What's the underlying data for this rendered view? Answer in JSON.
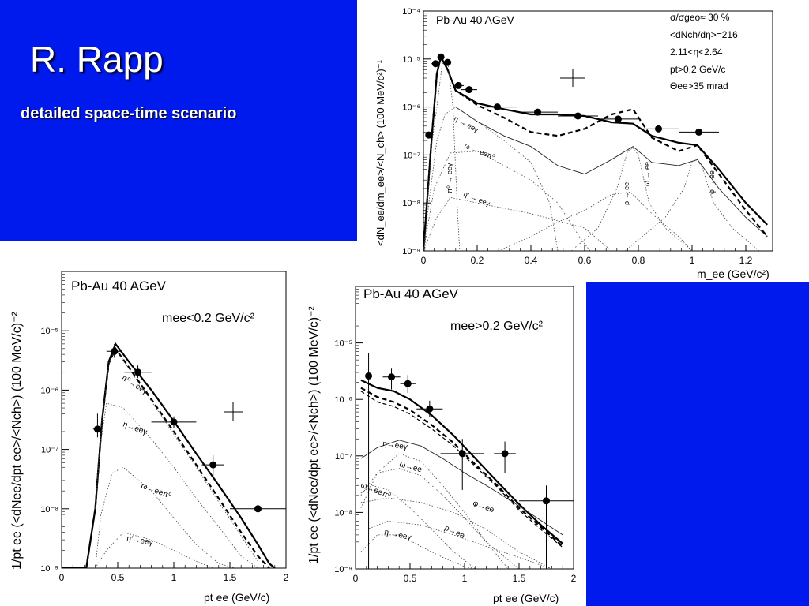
{
  "slide": {
    "title": "R. Rapp",
    "subtitle": "detailed space-time scenario",
    "background_color": "#0019ec"
  },
  "chart_data": [
    {
      "type": "line",
      "id": "mass",
      "title": "Pb-Au 40 AGeV",
      "xlabel": "m_ee (GeV/c²)",
      "ylabel": "<dN_ee/dm_ee>/<N_ch> (100 MeV/c²)⁻¹",
      "xlim": [
        0,
        1.3
      ],
      "ylim_log": [
        1e-09,
        0.0001
      ],
      "y_scale": "log",
      "x_ticks": [
        "0",
        "0.2",
        "0.4",
        "0.6",
        "0.8",
        "1",
        "1.2"
      ],
      "y_ticks": [
        "10⁻⁹",
        "10⁻⁸",
        "10⁻⁷",
        "10⁻⁶",
        "10⁻⁵",
        "10⁻⁴"
      ],
      "cuts": [
        "σ/σgeo≈ 30 %",
        "<dNch/dη>=216",
        "2.11<η<2.64",
        "pt>0.2 GeV/c",
        "Θee>35 mrad"
      ],
      "channel_labels": [
        "η → eeγ",
        "ω → eeπ⁰",
        "π⁰ → eeγ",
        "η′ → eeγ",
        "ρ → ee",
        "ω → ee",
        "φ → ee"
      ],
      "data_points": [
        {
          "x": 0.02,
          "y": 2.6e-07,
          "xerr": 0.01
        },
        {
          "x": 0.045,
          "y": 8e-06,
          "xerr": 0.015
        },
        {
          "x": 0.065,
          "y": 1.1e-05,
          "xerr": 0.01
        },
        {
          "x": 0.09,
          "y": 8.5e-06,
          "xerr": 0.01
        },
        {
          "x": 0.13,
          "y": 2.8e-06,
          "xerr": 0.02
        },
        {
          "x": 0.17,
          "y": 2.3e-06,
          "xerr": 0.03
        },
        {
          "x": 0.275,
          "y": 1e-06,
          "xerr": 0.075
        },
        {
          "x": 0.425,
          "y": 7.8e-07,
          "xerr": 0.075
        },
        {
          "x": 0.575,
          "y": 6.5e-07,
          "xerr": 0.075
        },
        {
          "x": 0.725,
          "y": 5.6e-07,
          "xerr": 0.075
        },
        {
          "x": 0.875,
          "y": 3.5e-07,
          "xerr": 0.075
        },
        {
          "x": 1.025,
          "y": 3e-07,
          "xerr": 0.075
        }
      ],
      "series": [
        {
          "style": "solid-thick",
          "x": [
            0,
            0.03,
            0.05,
            0.065,
            0.09,
            0.12,
            0.2,
            0.3,
            0.4,
            0.5,
            0.6,
            0.7,
            0.78,
            0.85,
            0.95,
            1.02,
            1.1,
            1.2,
            1.28
          ],
          "y": [
            1e-09,
            2e-07,
            5e-06,
            1.1e-05,
            6e-06,
            2.2e-06,
            1.2e-06,
            9e-07,
            7e-07,
            7e-07,
            6.5e-07,
            4.8e-07,
            4.5e-07,
            2.5e-07,
            1.8e-07,
            1.6e-07,
            5e-08,
            1e-08,
            3.5e-09
          ]
        },
        {
          "style": "dashed-thick",
          "x": [
            0,
            0.03,
            0.05,
            0.065,
            0.09,
            0.12,
            0.2,
            0.3,
            0.4,
            0.5,
            0.6,
            0.7,
            0.78,
            0.85,
            0.95,
            1.02,
            1.1,
            1.2,
            1.28
          ],
          "y": [
            1e-09,
            2e-07,
            5e-06,
            1.1e-05,
            6e-06,
            2.2e-06,
            1.1e-06,
            6e-07,
            3e-07,
            2.5e-07,
            3.5e-07,
            7e-07,
            9e-07,
            2.3e-07,
            1.2e-07,
            1.6e-07,
            4e-08,
            7e-09,
            2e-09
          ]
        },
        {
          "style": "solid-thin",
          "x": [
            0.12,
            0.2,
            0.3,
            0.4,
            0.5,
            0.6,
            0.7,
            0.78,
            0.85,
            0.95,
            1.02,
            1.1,
            1.2,
            1.28
          ],
          "y": [
            1e-06,
            5e-07,
            2.5e-07,
            1.5e-07,
            6e-08,
            4e-08,
            8e-08,
            1.5e-07,
            7e-08,
            6e-08,
            8e-08,
            2e-08,
            5e-09,
            2e-09
          ]
        },
        {
          "name": "η → eeγ",
          "style": "dotted",
          "x": [
            0,
            0.02,
            0.05,
            0.08,
            0.12,
            0.2,
            0.3,
            0.4,
            0.47,
            0.5
          ],
          "y": [
            1e-09,
            1e-08,
            2e-07,
            7e-07,
            1e-06,
            5e-07,
            2e-07,
            7e-08,
            1e-08,
            1e-09
          ]
        },
        {
          "name": "ω → eeπ⁰",
          "style": "dotted",
          "x": [
            0,
            0.04,
            0.1,
            0.2,
            0.3,
            0.4,
            0.5,
            0.58,
            0.62
          ],
          "y": [
            1e-09,
            2e-08,
            1.1e-07,
            1.2e-07,
            6e-08,
            3e-08,
            1e-08,
            2e-09,
            1e-09
          ]
        },
        {
          "name": "π⁰ → eeγ",
          "style": "dotted",
          "x": [
            0.005,
            0.015,
            0.03,
            0.05,
            0.07,
            0.09,
            0.11,
            0.125,
            0.135
          ],
          "y": [
            1e-09,
            1e-08,
            1.5e-07,
            1e-06,
            8e-06,
            9e-06,
            1e-06,
            1e-08,
            1e-09
          ]
        },
        {
          "name": "η′ → eeγ",
          "style": "dotted",
          "x": [
            0,
            0.05,
            0.1,
            0.2,
            0.4,
            0.6,
            0.7
          ],
          "y": [
            1e-09,
            5e-09,
            1.3e-08,
            1e-08,
            6e-09,
            3e-09,
            1e-09
          ]
        },
        {
          "name": "ρ → ee",
          "style": "dotted",
          "x": [
            0.28,
            0.4,
            0.5,
            0.6,
            0.7,
            0.77,
            0.85,
            0.95,
            1.0
          ],
          "y": [
            1e-09,
            2e-09,
            4e-09,
            7e-09,
            1.5e-08,
            1.7e-08,
            6e-09,
            2e-09,
            1e-09
          ]
        },
        {
          "name": "ω → ee",
          "style": "dotted",
          "x": [
            0.55,
            0.65,
            0.72,
            0.76,
            0.78,
            0.8,
            0.84,
            0.9,
            1.0
          ],
          "y": [
            1e-09,
            3e-09,
            2e-08,
            1.2e-07,
            1.4e-07,
            1e-07,
            1e-08,
            3e-09,
            1e-09
          ]
        },
        {
          "name": "φ → ee",
          "style": "dotted",
          "x": [
            0.75,
            0.9,
            0.97,
            1.0,
            1.02,
            1.04,
            1.08,
            1.15,
            1.25
          ],
          "y": [
            1e-09,
            5e-09,
            2e-08,
            7e-08,
            8e-08,
            5e-08,
            1e-08,
            3e-09,
            1e-09
          ]
        }
      ]
    },
    {
      "type": "line",
      "id": "pt_low",
      "title": "Pb-Au 40 AGeV",
      "cut": "mee<0.2 GeV/c²",
      "xlabel": "pt ee (GeV/c)",
      "ylabel": "1/pt ee (<dNee/dpt ee>/<Nch>) (100 MeV/c)⁻²",
      "xlim": [
        0,
        2
      ],
      "ylim_log": [
        1e-09,
        0.0001
      ],
      "y_scale": "log",
      "x_ticks": [
        "0",
        "0.5",
        "1",
        "1.5",
        "2"
      ],
      "y_ticks": [
        "10⁻⁹",
        "10⁻⁸",
        "10⁻⁷",
        "10⁻⁶",
        "10⁻⁵"
      ],
      "channel_labels": [
        "π⁰→eeγ",
        "η→eeγ",
        "ω→eeπ⁰",
        "η′→eeγ"
      ],
      "data_points": [
        {
          "x": 0.32,
          "y": 2.2e-07,
          "xerr": 0.04,
          "yerr_lo": 1.6e-07,
          "yerr_hi": 4e-07
        },
        {
          "x": 0.47,
          "y": 4.5e-06,
          "xerr": 0.07,
          "yerr_lo": 3.5e-06,
          "yerr_hi": 6e-06
        },
        {
          "x": 0.68,
          "y": 2e-06,
          "xerr": 0.12,
          "yerr_lo": 1.6e-06,
          "yerr_hi": 2.6e-06
        },
        {
          "x": 1.0,
          "y": 2.9e-07,
          "xerr": 0.2,
          "yerr_lo": 2.3e-07,
          "yerr_hi": 3.6e-07
        },
        {
          "x": 1.35,
          "y": 5.5e-08,
          "xerr": 0.1,
          "yerr_lo": 3.5e-08,
          "yerr_hi": 8e-08
        },
        {
          "x": 1.75,
          "y": 1e-08,
          "xerr": 0.25,
          "yerr_lo": 2e-09,
          "yerr_hi": 1.7e-08
        }
      ],
      "series": [
        {
          "style": "solid-thick",
          "x": [
            0,
            0.22,
            0.3,
            0.36,
            0.42,
            0.48,
            0.6,
            0.8,
            1.0,
            1.2,
            1.4,
            1.6,
            1.75,
            1.85,
            1.9
          ],
          "y": [
            1e-09,
            1e-09,
            1e-08,
            3e-07,
            3e-06,
            6e-06,
            3e-06,
            1e-06,
            3e-07,
            8.5e-08,
            2.5e-08,
            7e-09,
            2.5e-09,
            1.2e-09,
            1e-09
          ]
        },
        {
          "style": "dashed-thick",
          "x": [
            0,
            0.22,
            0.3,
            0.36,
            0.42,
            0.48,
            0.6,
            0.8,
            1.0,
            1.2,
            1.4,
            1.6,
            1.75,
            1.85
          ],
          "y": [
            1e-09,
            1e-09,
            1e-08,
            3e-07,
            2.8e-06,
            5e-06,
            2.4e-06,
            7e-07,
            2e-07,
            5.5e-08,
            1.5e-08,
            4e-09,
            1.6e-09,
            1e-09
          ]
        },
        {
          "name": "π⁰→eeγ",
          "style": "dotted",
          "x": [
            0.3,
            0.36,
            0.42,
            0.48,
            0.6,
            0.8,
            1.0,
            1.2,
            1.4,
            1.6,
            1.75
          ],
          "y": [
            1e-08,
            3e-07,
            2.8e-06,
            5e-06,
            2.3e-06,
            6.5e-07,
            1.8e-07,
            5e-08,
            1.3e-08,
            3.5e-09,
            1.3e-09
          ]
        },
        {
          "name": "η→eeγ",
          "style": "dotted",
          "x": [
            0.3,
            0.34,
            0.4,
            0.55,
            0.8,
            1.0,
            1.2,
            1.4,
            1.6,
            1.75
          ],
          "y": [
            1e-08,
            1e-07,
            6e-07,
            5e-07,
            1.5e-07,
            5e-08,
            1.5e-08,
            5e-09,
            1.6e-09,
            1e-09
          ]
        },
        {
          "name": "ω→eeπ⁰",
          "style": "dotted",
          "x": [
            0.3,
            0.35,
            0.45,
            0.55,
            0.8,
            1.0,
            1.2,
            1.4,
            1.55
          ],
          "y": [
            1e-09,
            8e-09,
            4e-08,
            5e-08,
            2e-08,
            7e-09,
            2.5e-09,
            1.2e-09,
            1e-09
          ]
        },
        {
          "name": "η′→eeγ",
          "style": "dotted",
          "x": [
            0.3,
            0.4,
            0.55,
            0.8,
            1.0,
            1.2,
            1.35
          ],
          "y": [
            1e-09,
            2e-09,
            4e-09,
            3e-09,
            2e-09,
            1.3e-09,
            1e-09
          ]
        }
      ]
    },
    {
      "type": "line",
      "id": "pt_high",
      "title": "Pb-Au 40 AGeV",
      "cut": "mee>0.2 GeV/c²",
      "xlabel": "pt ee (GeV/c)",
      "ylabel": "1/pt ee (<dNee/dpt ee>/<Nch>) (100 MeV/c)⁻²",
      "xlim": [
        0,
        2
      ],
      "ylim_log": [
        1e-09,
        0.0001
      ],
      "y_scale": "log",
      "x_ticks": [
        "0",
        "0.5",
        "1",
        "1.5",
        "2"
      ],
      "y_ticks": [
        "10⁻⁹",
        "10⁻⁸",
        "10⁻⁷",
        "10⁻⁶",
        "10⁻⁵"
      ],
      "channel_labels": [
        "η→eeγ",
        "ω→ee",
        "ω→eeπ⁰",
        "φ→ee",
        "η →eeγ",
        "ρ→ee"
      ],
      "data_points": [
        {
          "x": 0.12,
          "y": 2.6e-06,
          "xerr": 0.07,
          "yerr_lo": 1e-09,
          "yerr_hi": 6.5e-06
        },
        {
          "x": 0.33,
          "y": 2.5e-06,
          "xerr": 0.08,
          "yerr_lo": 1.5e-06,
          "yerr_hi": 3.5e-06
        },
        {
          "x": 0.48,
          "y": 1.9e-06,
          "xerr": 0.07,
          "yerr_lo": 1.3e-06,
          "yerr_hi": 2.7e-06
        },
        {
          "x": 0.68,
          "y": 6.8e-07,
          "xerr": 0.12,
          "yerr_lo": 4.8e-07,
          "yerr_hi": 9.5e-07
        },
        {
          "x": 0.98,
          "y": 1.1e-07,
          "xerr": 0.2,
          "yerr_lo": 2.5e-08,
          "yerr_hi": 2e-07
        },
        {
          "x": 1.37,
          "y": 1.1e-07,
          "xerr": 0.1,
          "yerr_lo": 5e-08,
          "yerr_hi": 1.8e-07
        },
        {
          "x": 1.75,
          "y": 1.6e-08,
          "xerr": 0.25,
          "yerr_lo": 1e-09,
          "yerr_hi": 3e-08
        }
      ],
      "series": [
        {
          "style": "solid-thick",
          "x": [
            0.05,
            0.2,
            0.35,
            0.5,
            0.7,
            0.9,
            1.1,
            1.3,
            1.5,
            1.7,
            1.9
          ],
          "y": [
            2.2e-06,
            1.6e-06,
            1.4e-06,
            1e-06,
            5.2e-07,
            2.3e-07,
            9e-08,
            3.5e-08,
            1.4e-08,
            6e-09,
            2.8e-09
          ]
        },
        {
          "style": "dashed-thick",
          "x": [
            0.05,
            0.2,
            0.35,
            0.5,
            0.7,
            0.9,
            1.1,
            1.3,
            1.5,
            1.7,
            1.9
          ],
          "y": [
            1.6e-06,
            1.1e-06,
            9e-07,
            6.5e-07,
            3.5e-07,
            1.7e-07,
            7e-08,
            3e-08,
            1.2e-08,
            5.5e-09,
            2.5e-09
          ]
        },
        {
          "style": "dashed-thin",
          "x": [
            0.05,
            0.2,
            0.35,
            0.5,
            0.7,
            0.9,
            1.1,
            1.3,
            1.5,
            1.7,
            1.9
          ],
          "y": [
            1.4e-06,
            9e-07,
            7.5e-07,
            5.5e-07,
            3e-07,
            1.5e-07,
            6.5e-08,
            2.8e-08,
            1.1e-08,
            5e-09,
            2.4e-09
          ]
        },
        {
          "style": "solid-thin",
          "x": [
            0.05,
            0.2,
            0.4,
            0.6,
            0.8,
            1.0,
            1.2,
            1.5,
            1.9
          ],
          "y": [
            9e-08,
            1.4e-07,
            1.9e-07,
            1.5e-07,
            9e-08,
            5e-08,
            3e-08,
            1.3e-08,
            4e-09
          ]
        },
        {
          "name": "η→eeγ",
          "style": "dotted",
          "x": [
            0.05,
            0.2,
            0.4,
            0.6,
            0.8,
            1.0,
            1.2,
            1.4
          ],
          "y": [
            1.2e-08,
            5e-08,
            1.1e-07,
            8e-08,
            3e-08,
            1e-08,
            3e-09,
            1e-09
          ]
        },
        {
          "name": "ω→ee",
          "style": "dotted",
          "x": [
            0.05,
            0.2,
            0.4,
            0.6,
            0.8,
            1.0,
            1.2,
            1.5
          ],
          "y": [
            2e-08,
            5e-08,
            6e-08,
            4.5e-08,
            2e-08,
            8e-09,
            3e-09,
            1e-09
          ]
        },
        {
          "name": "ω→eeπ⁰",
          "style": "dotted",
          "x": [
            0.05,
            0.15,
            0.3,
            0.5,
            0.7,
            0.9,
            1.1
          ],
          "y": [
            2.2e-08,
            3e-08,
            2.5e-08,
            1.2e-08,
            5e-09,
            2e-09,
            1e-09
          ]
        },
        {
          "name": "φ→ee",
          "style": "dotted",
          "x": [
            0.05,
            0.3,
            0.6,
            0.9,
            1.2,
            1.5,
            1.8
          ],
          "y": [
            1.5e-08,
            1.8e-08,
            1.5e-08,
            1e-08,
            5e-09,
            2e-09,
            1e-09
          ]
        },
        {
          "name": "η →eeγ",
          "style": "dotted",
          "x": [
            0.05,
            0.2,
            0.4,
            0.6,
            0.8,
            1.0,
            1.1
          ],
          "y": [
            2e-09,
            4e-09,
            4e-09,
            2.5e-09,
            1.6e-09,
            1.1e-09,
            1e-09
          ]
        },
        {
          "name": "ρ→ee",
          "style": "dotted",
          "x": [
            0.1,
            0.3,
            0.6,
            0.9,
            1.2,
            1.5,
            1.8
          ],
          "y": [
            5e-09,
            7e-09,
            6e-09,
            4e-09,
            2.5e-09,
            1.6e-09,
            1e-09
          ]
        }
      ]
    }
  ]
}
